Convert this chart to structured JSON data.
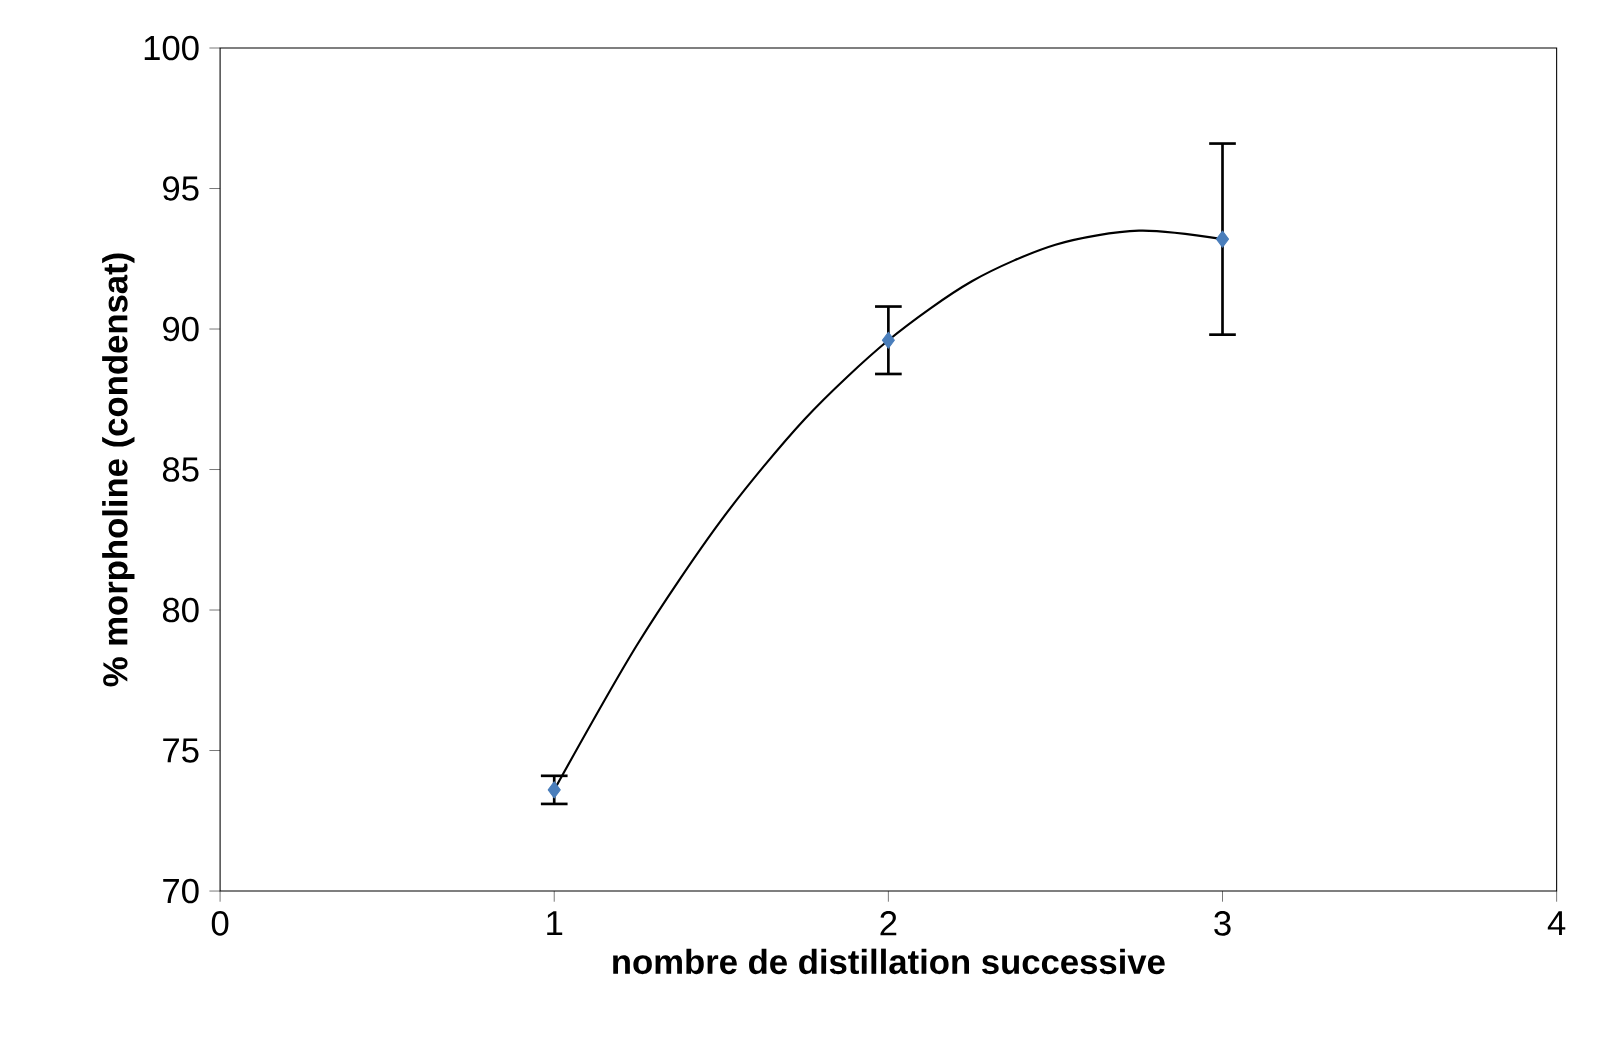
{
  "chart_data": {
    "type": "scatter",
    "xlabel": "nombre de distillation successive",
    "ylabel": "% morpholine (condensat)",
    "xlim": [
      0,
      4
    ],
    "xticks": [
      0,
      1,
      2,
      3,
      4
    ],
    "ylim": [
      70,
      100
    ],
    "yticks": [
      70,
      75,
      80,
      85,
      90,
      95,
      100
    ],
    "grid": false,
    "marker": "diamond",
    "series": [
      {
        "type": "scatter",
        "color": "#4a7ebb",
        "x": [
          1,
          2,
          3
        ],
        "values": [
          73.6,
          89.6,
          93.2
        ],
        "errors": [
          0.5,
          1.2,
          3.4
        ]
      },
      {
        "type": "line",
        "color": "#000000",
        "marker": "none",
        "x": [
          1,
          1.25,
          1.5,
          1.75,
          2,
          2.25,
          2.5,
          2.75,
          3
        ],
        "values": [
          73.6,
          78.8,
          83.2,
          86.8,
          89.6,
          91.7,
          93.0,
          93.5,
          93.2
        ]
      }
    ]
  }
}
